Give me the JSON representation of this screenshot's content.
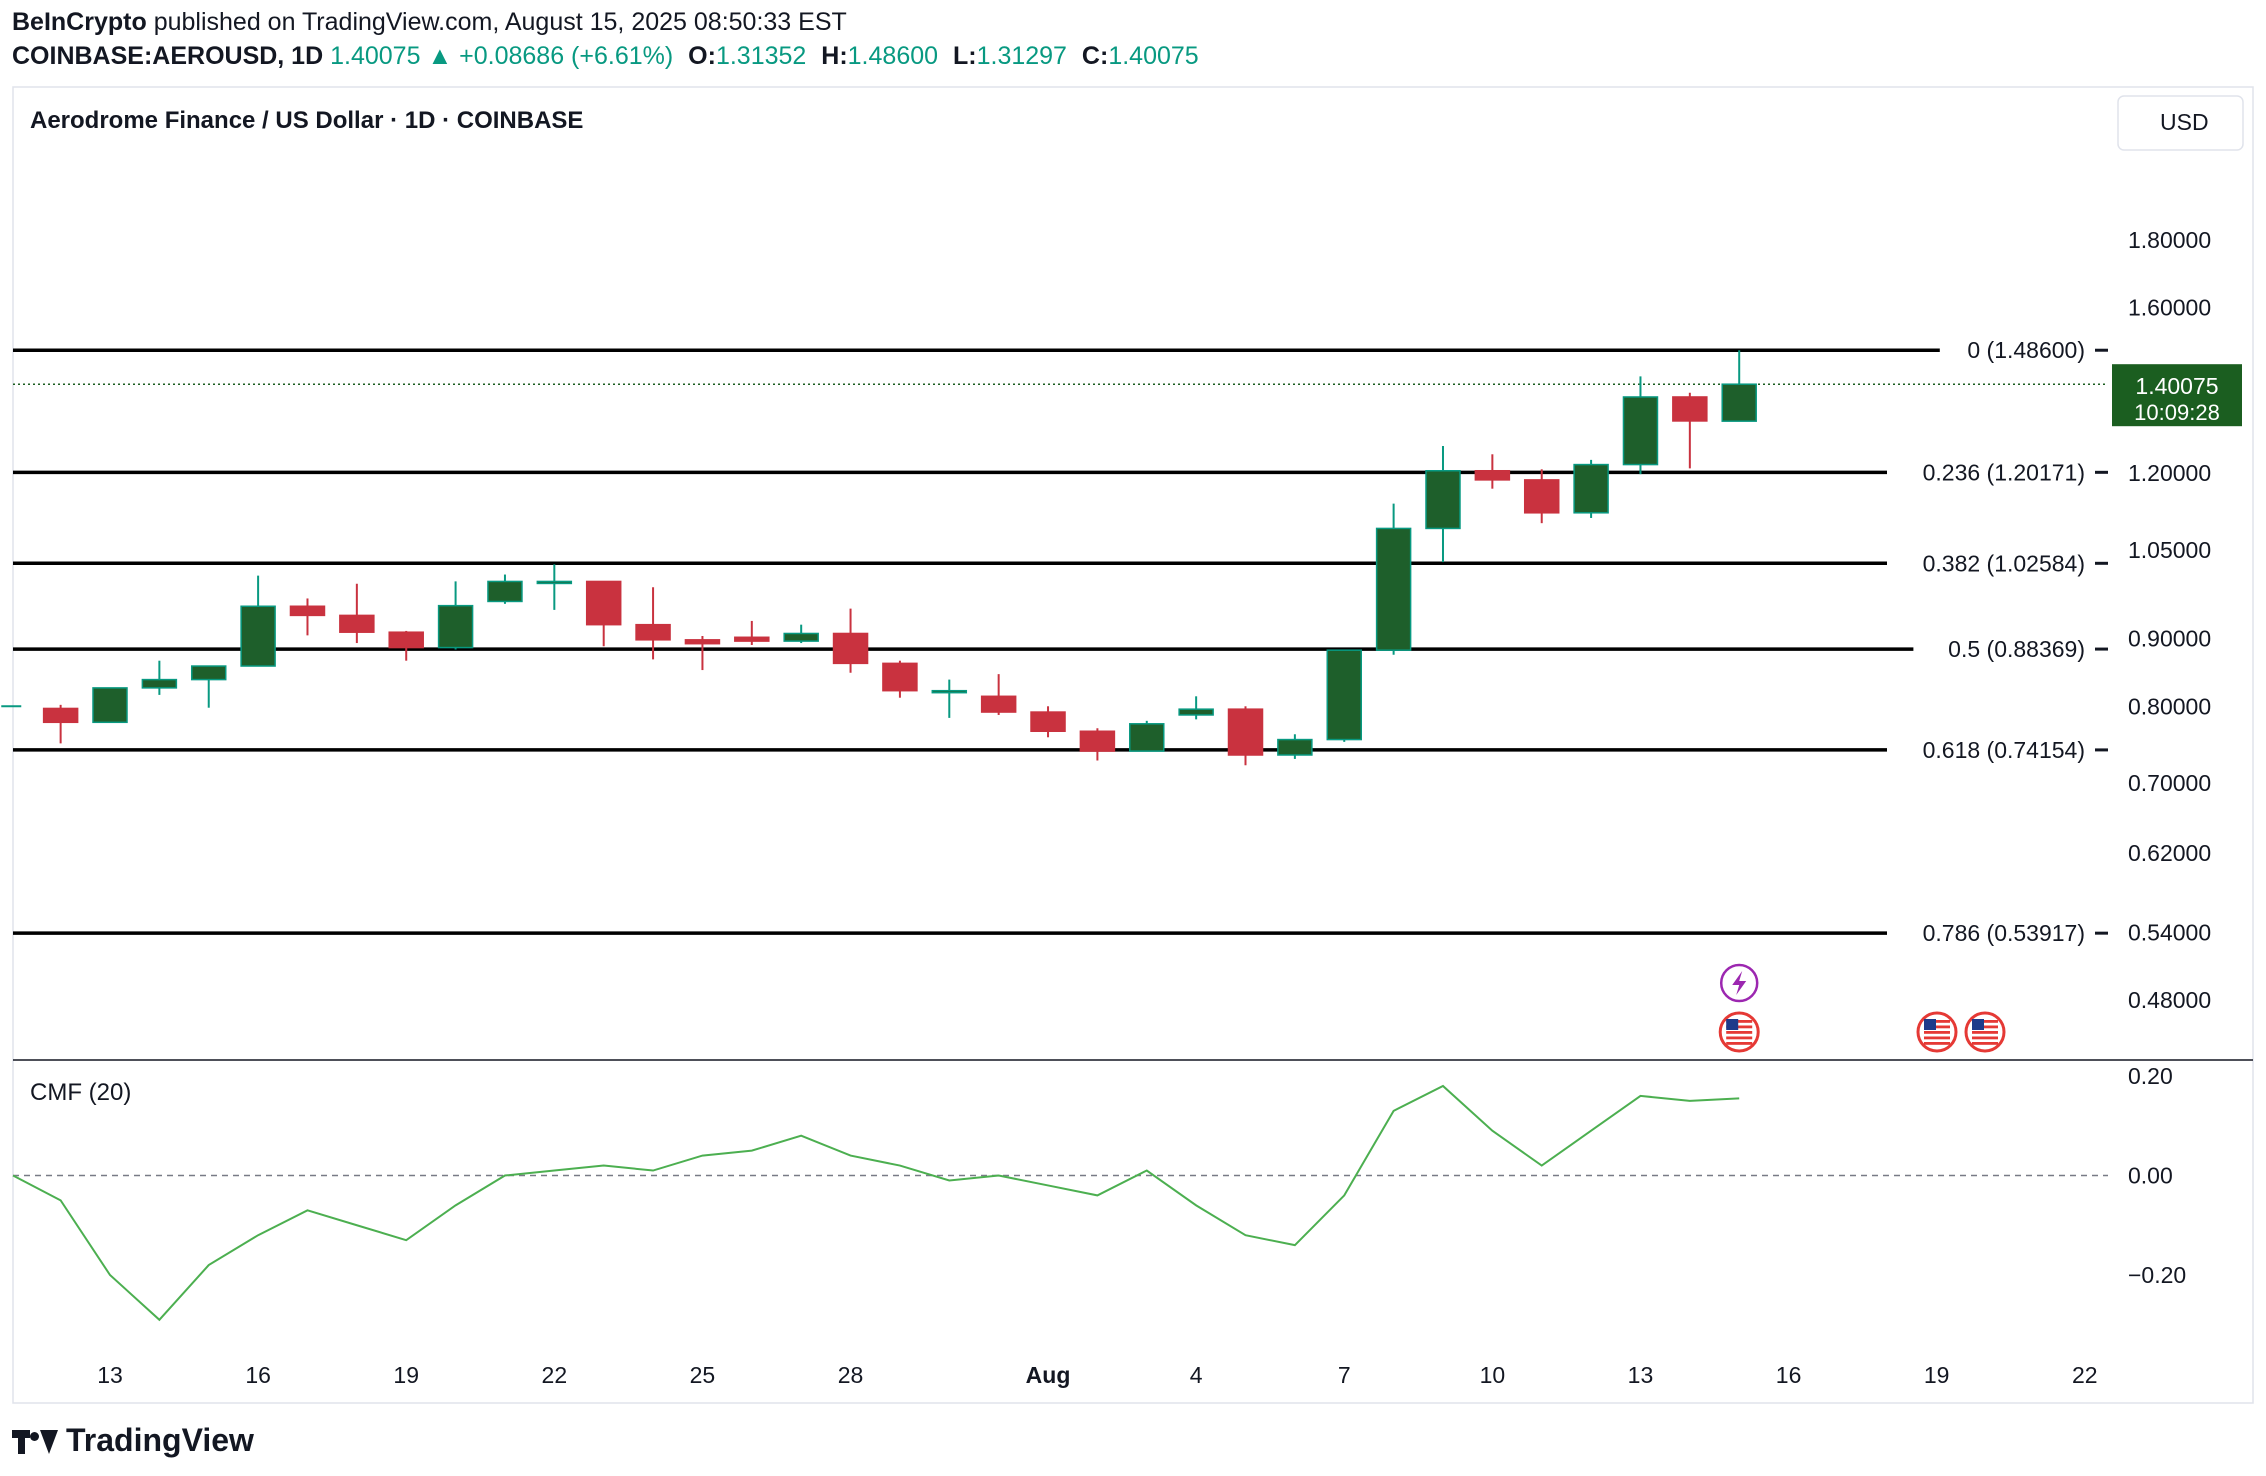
{
  "header": {
    "publisher": "BeInCrypto",
    "published_text": "published on TradingView.com, August 15, 2025 08:50:33 EST",
    "symbol": "COINBASE:AEROUSD, 1D",
    "price": "1.40075",
    "change": "+0.08686 (+6.61%)",
    "o_label": "O:",
    "o_value": "1.31352",
    "h_label": "H:",
    "h_value": "1.48600",
    "l_label": "L:",
    "l_value": "1.31297",
    "c_label": "C:",
    "c_value": "1.40075"
  },
  "chart_title": "Aerodrome Finance / US Dollar · 1D · COINBASE",
  "currency_button": "USD",
  "price_tag": {
    "price": "1.40075",
    "countdown": "10:09:28"
  },
  "footer": {
    "brand": "TradingView"
  },
  "colors": {
    "up": "#1e5f2b",
    "down": "#c9323f",
    "up_edge": "#089981",
    "cmf": "#4caf50",
    "tag": "#1b5e20"
  },
  "chart_data": [
    {
      "type": "candlestick",
      "title": "Aerodrome Finance / US Dollar · 1D · COINBASE",
      "scale": "log",
      "y_ticks": [
        "1.80000",
        "1.60000",
        "1.20000",
        "1.05000",
        "0.90000",
        "0.80000",
        "0.70000",
        "0.62000",
        "0.54000",
        "0.48000"
      ],
      "y_tick_values": [
        1.8,
        1.6,
        1.2,
        1.05,
        0.9,
        0.8,
        0.7,
        0.62,
        0.54,
        0.48
      ],
      "x_ticks": [
        {
          "label": "13",
          "day": 0
        },
        {
          "label": "16",
          "day": 3
        },
        {
          "label": "19",
          "day": 6
        },
        {
          "label": "22",
          "day": 9
        },
        {
          "label": "25",
          "day": 12
        },
        {
          "label": "28",
          "day": 15
        },
        {
          "label": "Aug",
          "day": 19
        },
        {
          "label": "4",
          "day": 22
        },
        {
          "label": "7",
          "day": 25
        },
        {
          "label": "10",
          "day": 28
        },
        {
          "label": "13",
          "day": 31
        },
        {
          "label": "16",
          "day": 34
        },
        {
          "label": "19",
          "day": 37
        },
        {
          "label": "22",
          "day": 40
        }
      ],
      "candles": [
        {
          "day": -2,
          "o": 0.8,
          "h": 0.8,
          "l": 0.8,
          "c": 0.8
        },
        {
          "day": -1,
          "o": 0.797,
          "h": 0.802,
          "l": 0.75,
          "c": 0.778
        },
        {
          "day": 0,
          "o": 0.778,
          "h": 0.826,
          "l": 0.778,
          "c": 0.826
        },
        {
          "day": 1,
          "o": 0.826,
          "h": 0.866,
          "l": 0.816,
          "c": 0.838
        },
        {
          "day": 2,
          "o": 0.838,
          "h": 0.858,
          "l": 0.798,
          "c": 0.858
        },
        {
          "day": 3,
          "o": 0.858,
          "h": 1.004,
          "l": 0.858,
          "c": 0.952
        },
        {
          "day": 4,
          "o": 0.952,
          "h": 0.965,
          "l": 0.905,
          "c": 0.937
        },
        {
          "day": 5,
          "o": 0.937,
          "h": 0.99,
          "l": 0.893,
          "c": 0.91
        },
        {
          "day": 6,
          "o": 0.91,
          "h": 0.912,
          "l": 0.866,
          "c": 0.886
        },
        {
          "day": 7,
          "o": 0.886,
          "h": 0.994,
          "l": 0.883,
          "c": 0.953
        },
        {
          "day": 8,
          "o": 0.96,
          "h": 1.006,
          "l": 0.956,
          "c": 0.994
        },
        {
          "day": 9,
          "o": 0.992,
          "h": 1.024,
          "l": 0.946,
          "c": 0.994
        },
        {
          "day": 10,
          "o": 0.994,
          "h": 0.994,
          "l": 0.888,
          "c": 0.922
        },
        {
          "day": 11,
          "o": 0.922,
          "h": 0.984,
          "l": 0.868,
          "c": 0.898
        },
        {
          "day": 12,
          "o": 0.898,
          "h": 0.904,
          "l": 0.852,
          "c": 0.892
        },
        {
          "day": 13,
          "o": 0.902,
          "h": 0.928,
          "l": 0.89,
          "c": 0.896
        },
        {
          "day": 14,
          "o": 0.896,
          "h": 0.922,
          "l": 0.893,
          "c": 0.908
        },
        {
          "day": 15,
          "o": 0.908,
          "h": 0.948,
          "l": 0.848,
          "c": 0.862
        },
        {
          "day": 16,
          "o": 0.862,
          "h": 0.866,
          "l": 0.812,
          "c": 0.822
        },
        {
          "day": 17,
          "o": 0.822,
          "h": 0.838,
          "l": 0.784,
          "c": 0.822
        },
        {
          "day": 18,
          "o": 0.814,
          "h": 0.846,
          "l": 0.788,
          "c": 0.792
        },
        {
          "day": 19,
          "o": 0.792,
          "h": 0.8,
          "l": 0.758,
          "c": 0.766
        },
        {
          "day": 20,
          "o": 0.766,
          "h": 0.77,
          "l": 0.728,
          "c": 0.74
        },
        {
          "day": 21,
          "o": 0.74,
          "h": 0.78,
          "l": 0.74,
          "c": 0.776
        },
        {
          "day": 22,
          "o": 0.788,
          "h": 0.814,
          "l": 0.782,
          "c": 0.796
        },
        {
          "day": 23,
          "o": 0.796,
          "h": 0.8,
          "l": 0.722,
          "c": 0.735
        },
        {
          "day": 24,
          "o": 0.735,
          "h": 0.762,
          "l": 0.73,
          "c": 0.755
        },
        {
          "day": 25,
          "o": 0.755,
          "h": 0.882,
          "l": 0.752,
          "c": 0.882
        },
        {
          "day": 26,
          "o": 0.882,
          "h": 1.138,
          "l": 0.875,
          "c": 1.09
        },
        {
          "day": 27,
          "o": 1.09,
          "h": 1.258,
          "l": 1.028,
          "c": 1.205
        },
        {
          "day": 28,
          "o": 1.205,
          "h": 1.24,
          "l": 1.168,
          "c": 1.186
        },
        {
          "day": 29,
          "o": 1.186,
          "h": 1.208,
          "l": 1.1,
          "c": 1.12
        },
        {
          "day": 30,
          "o": 1.12,
          "h": 1.228,
          "l": 1.11,
          "c": 1.218
        },
        {
          "day": 31,
          "o": 1.218,
          "h": 1.42,
          "l": 1.198,
          "c": 1.37
        },
        {
          "day": 32,
          "o": 1.37,
          "h": 1.38,
          "l": 1.21,
          "c": 1.314
        },
        {
          "day": 33,
          "o": 1.31352,
          "h": 1.486,
          "l": 1.31297,
          "c": 1.40075
        }
      ],
      "fib_levels": [
        {
          "label": "0 (1.48600)",
          "value": 1.486
        },
        {
          "label": "0.236 (1.20171)",
          "value": 1.20171
        },
        {
          "label": "0.382 (1.02584)",
          "value": 1.02584
        },
        {
          "label": "0.5 (0.88369)",
          "value": 0.88369
        },
        {
          "label": "0.618 (0.74154)",
          "value": 0.74154
        },
        {
          "label": "0.786 (0.53917)",
          "value": 0.53917
        }
      ]
    },
    {
      "type": "line",
      "title": "CMF (20)",
      "y_ticks": [
        "0.20",
        "0.00",
        "−0.20"
      ],
      "y_tick_values": [
        0.2,
        0.0,
        -0.2
      ],
      "zero_line": true,
      "series": [
        {
          "x": [
            -2,
            -1,
            0,
            1,
            2,
            3,
            4,
            5,
            6,
            7,
            8,
            9,
            10,
            11,
            12,
            13,
            14,
            15,
            16,
            17,
            18,
            19,
            20,
            21,
            22,
            23,
            24,
            25,
            26,
            27,
            28,
            29,
            30,
            31,
            32,
            33
          ],
          "values": [
            0.0,
            -0.05,
            -0.2,
            -0.29,
            -0.18,
            -0.12,
            -0.07,
            -0.1,
            -0.13,
            -0.06,
            0.0,
            0.01,
            0.02,
            0.01,
            0.04,
            0.05,
            0.08,
            0.04,
            0.02,
            -0.01,
            0.0,
            -0.02,
            -0.04,
            0.01,
            -0.06,
            -0.12,
            -0.14,
            -0.04,
            0.13,
            0.18,
            0.09,
            0.02,
            0.09,
            0.16,
            0.15,
            0.155
          ]
        }
      ]
    }
  ]
}
